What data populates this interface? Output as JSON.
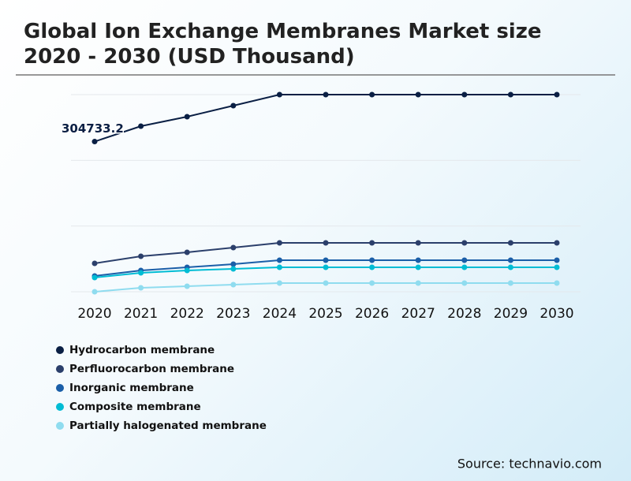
{
  "chart_data": {
    "type": "line",
    "title": "Global Ion Exchange Membranes Market size 2020 - 2030 (USD Thousand)",
    "categories": [
      "2020",
      "2021",
      "2022",
      "2023",
      "2024",
      "2025",
      "2026",
      "2027",
      "2028",
      "2029",
      "2030"
    ],
    "ylim": [
      0,
      400000
    ],
    "grid": true,
    "series": [
      {
        "name": "Hydrocarbon membrane",
        "color": "#0a1f44",
        "values": [
          304733.2,
          336000,
          355200,
          377600,
          400000,
          400000,
          400000,
          400000,
          400000,
          400000,
          400000
        ]
      },
      {
        "name": "Perfluorocarbon membrane",
        "color": "#2b3f6b",
        "values": [
          57600,
          72000,
          80000,
          89600,
          99200,
          99200,
          99200,
          99200,
          99200,
          99200,
          99200
        ]
      },
      {
        "name": "Inorganic membrane",
        "color": "#1a5ea8",
        "values": [
          32000,
          43200,
          49600,
          56000,
          64000,
          64000,
          64000,
          64000,
          64000,
          64000,
          64000
        ]
      },
      {
        "name": "Composite membrane",
        "color": "#00bcd4",
        "values": [
          28800,
          38400,
          43200,
          46400,
          49600,
          49600,
          49600,
          49600,
          49600,
          49600,
          49600
        ]
      },
      {
        "name": "Partially halogenated membrane",
        "color": "#8fdcef",
        "values": [
          0,
          8000,
          11200,
          14400,
          17600,
          17600,
          17600,
          17600,
          17600,
          17600,
          17600
        ]
      }
    ],
    "source": "Source: technavio.com"
  }
}
